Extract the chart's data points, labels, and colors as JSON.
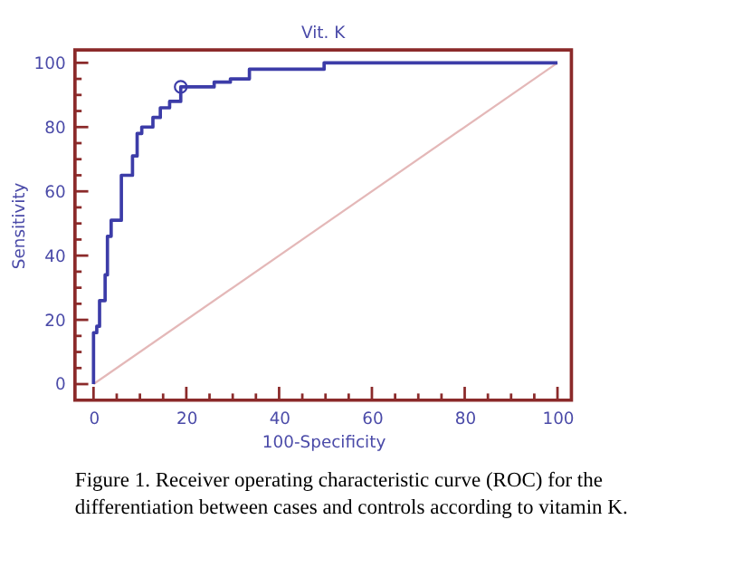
{
  "chart_data": {
    "type": "step",
    "title": "Vit. K",
    "xlabel": "100-Specificity",
    "ylabel": "Sensitivity",
    "annotations": [
      "Figure 1. Receiver operating characteristic curve (ROC) for the differentiation between cases and controls according to vitamin K."
    ],
    "xlim": [
      -4,
      103
    ],
    "ylim": [
      -5,
      104
    ],
    "xticks": [
      0,
      {
        "value": 5,
        "label": null
      },
      {
        "value": 10,
        "label": null
      },
      {
        "value": 15,
        "label": null
      },
      20,
      {
        "value": 25,
        "label": null
      },
      {
        "value": 30,
        "label": null
      },
      {
        "value": 35,
        "label": null
      },
      40,
      {
        "value": 45,
        "label": null
      },
      {
        "value": 50,
        "label": null
      },
      {
        "value": 55,
        "label": null
      },
      60,
      {
        "value": 65,
        "label": null
      },
      {
        "value": 70,
        "label": null
      },
      {
        "value": 75,
        "label": null
      },
      80,
      {
        "value": 85,
        "label": null
      },
      {
        "value": 90,
        "label": null
      },
      {
        "value": 95,
        "label": null
      },
      100
    ],
    "yticks": [
      0,
      {
        "value": 5,
        "label": null
      },
      {
        "value": 10,
        "label": null
      },
      {
        "value": 15,
        "label": null
      },
      20,
      {
        "value": 25,
        "label": null
      },
      {
        "value": 30,
        "label": null
      },
      {
        "value": 35,
        "label": null
      },
      40,
      {
        "value": 45,
        "label": null
      },
      {
        "value": 50,
        "label": null
      },
      {
        "value": 55,
        "label": null
      },
      60,
      {
        "value": 65,
        "label": null
      },
      {
        "value": 70,
        "label": null
      },
      {
        "value": 75,
        "label": null
      },
      80,
      {
        "value": 85,
        "label": null
      },
      {
        "value": 90,
        "label": null
      },
      {
        "value": 95,
        "label": null
      },
      100
    ],
    "series": [
      {
        "type": "line",
        "color": "#e4b8b8",
        "x": [
          0,
          100
        ],
        "values": [
          0,
          100
        ],
        "marker": "none"
      },
      {
        "color": "#3c3ca8",
        "marker": "none",
        "x": [
          0,
          0,
          0.7,
          1.3,
          2.5,
          3,
          3.8,
          6,
          8.4,
          9.4,
          10.4,
          12.8,
          14.4,
          16.4,
          18.8,
          26,
          29.5,
          33.6,
          49.7,
          100
        ],
        "values": [
          0,
          16,
          18,
          26,
          34,
          46,
          51,
          65,
          71,
          78,
          80,
          83,
          86,
          88,
          92.5,
          94,
          95,
          98,
          100,
          100
        ]
      },
      {
        "type": "scatter",
        "color": "#3c3ca8",
        "marker": "circle",
        "x": [
          18.8
        ],
        "values": [
          92.5
        ]
      }
    ]
  }
}
